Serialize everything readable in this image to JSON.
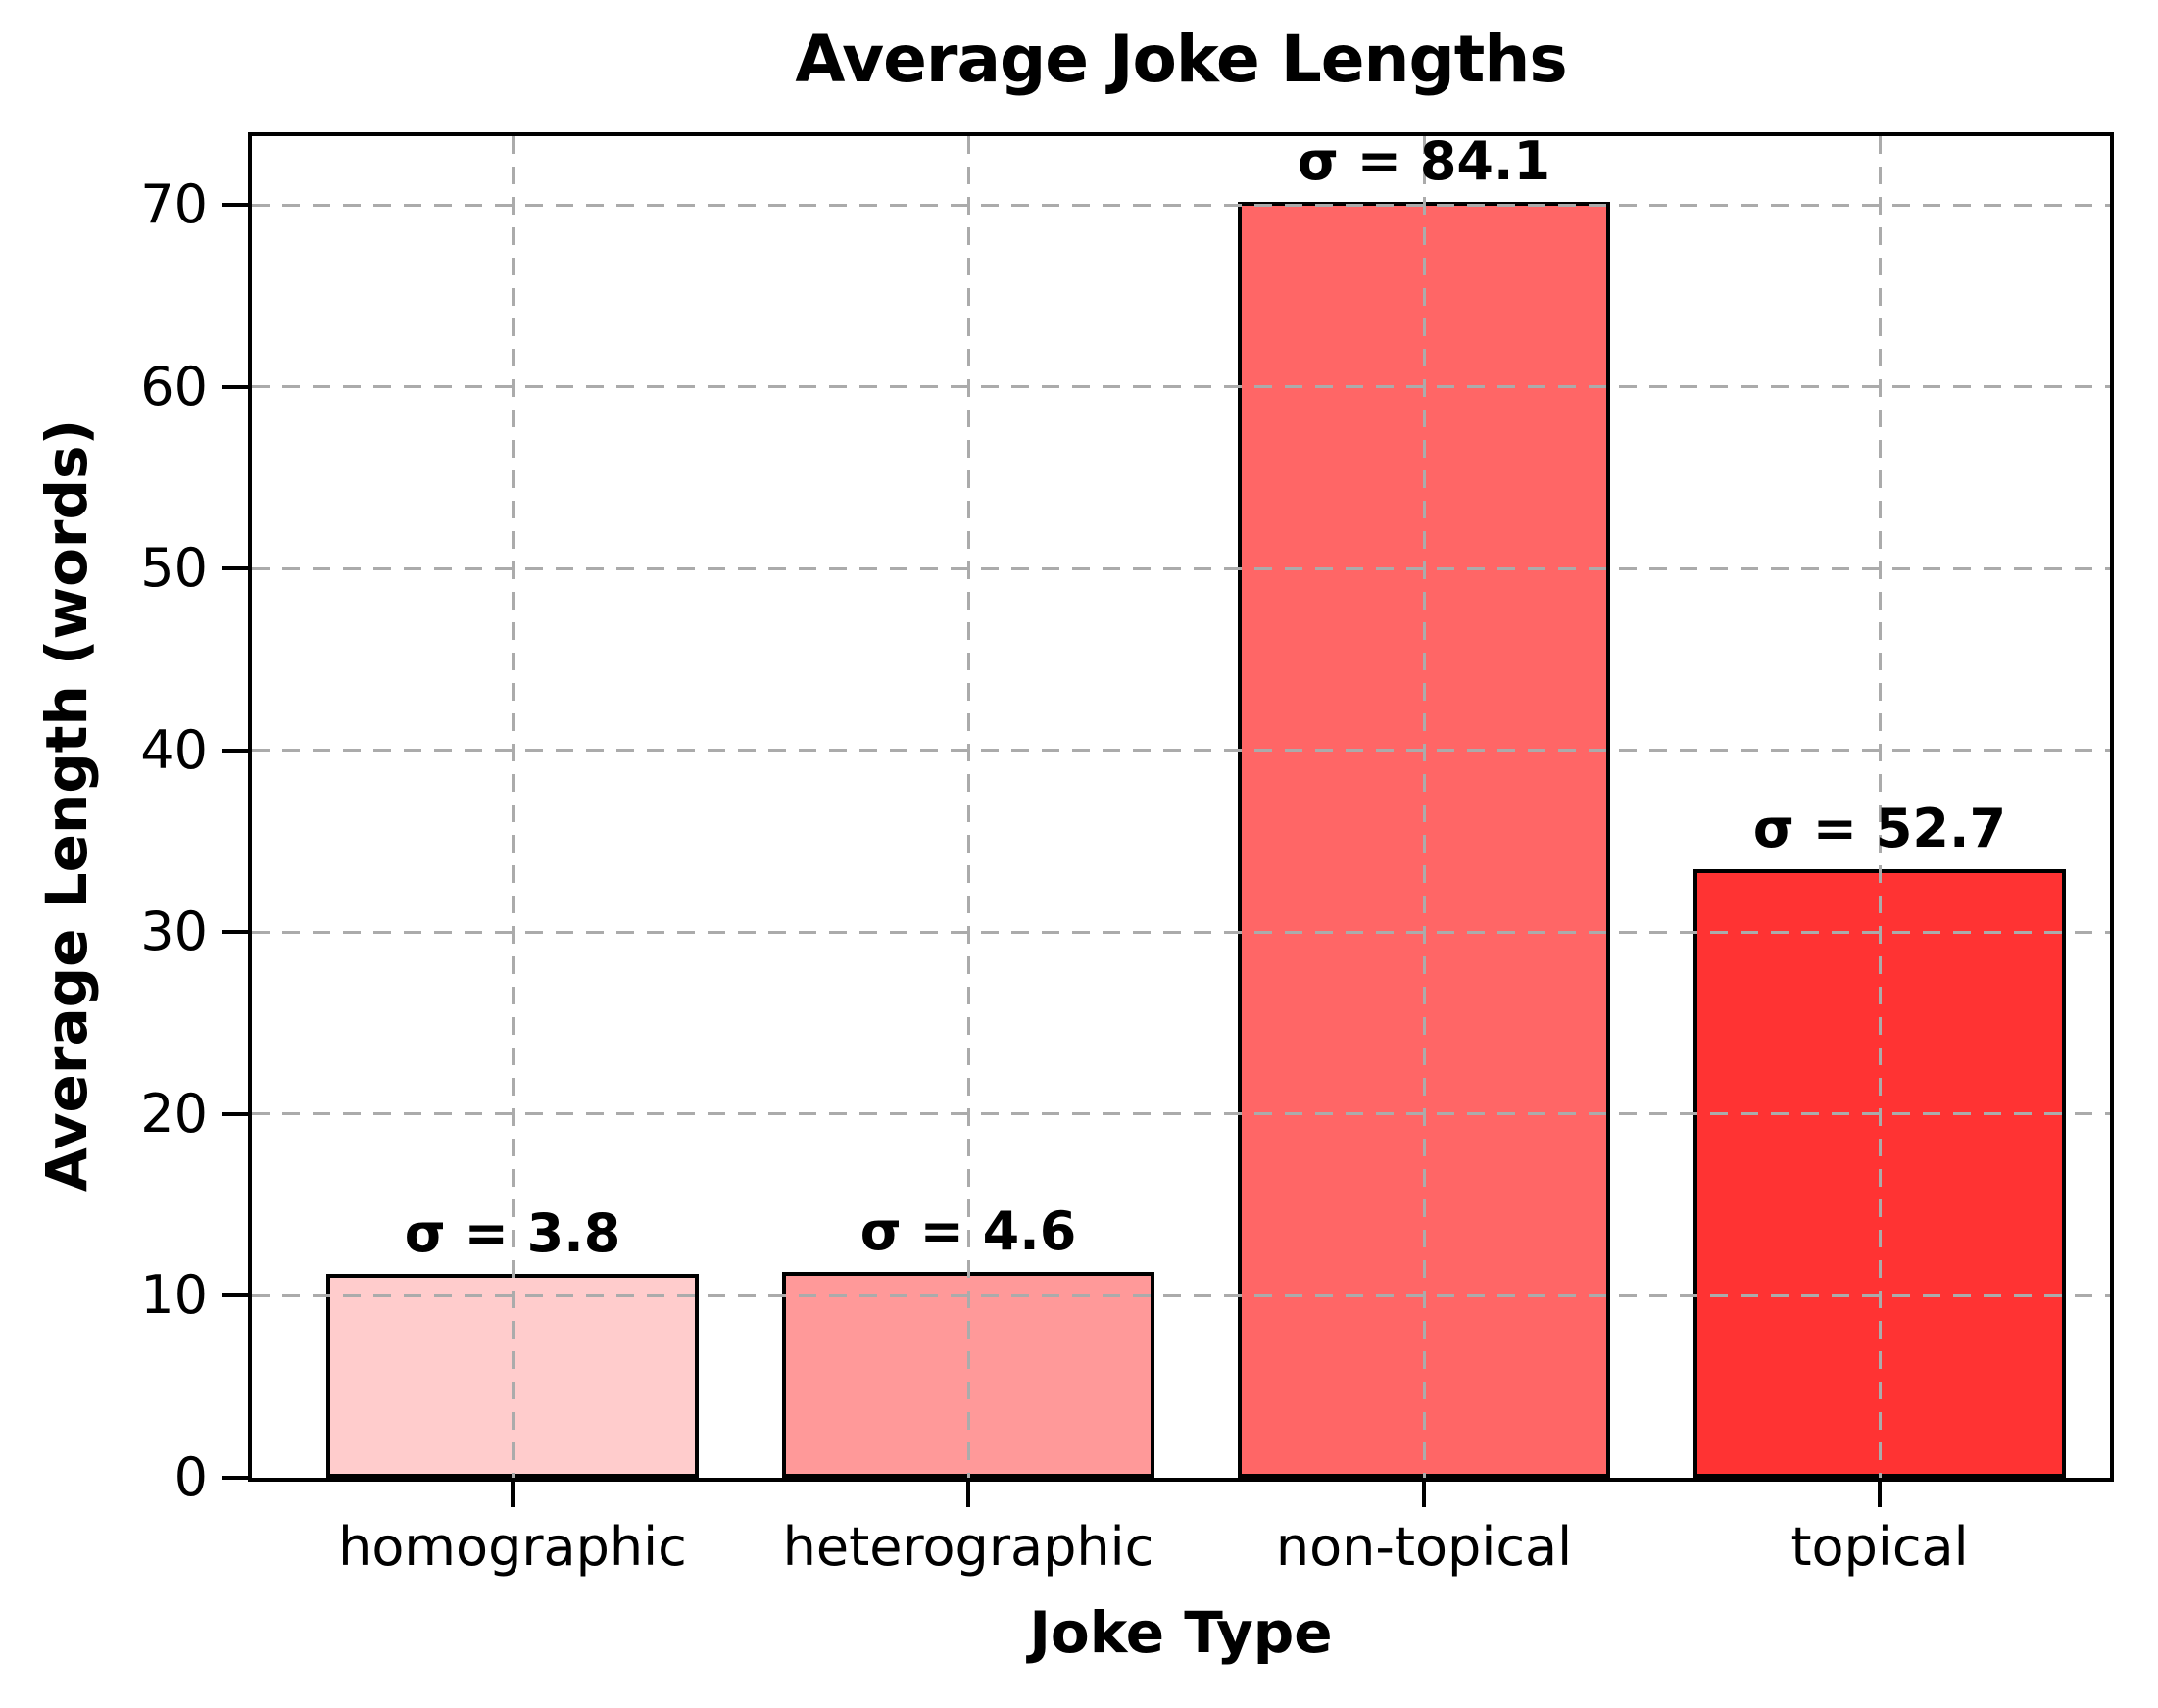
{
  "chart_data": {
    "type": "bar",
    "title": "Average Joke Lengths",
    "xlabel": "Joke Type",
    "ylabel": "Average Length (words)",
    "categories": [
      "homographic",
      "heterographic",
      "non-topical",
      "topical"
    ],
    "values": [
      11.2,
      11.3,
      70.2,
      33.5
    ],
    "bar_labels": [
      "σ = 3.8",
      "σ = 4.6",
      "σ = 84.1",
      "σ = 52.7"
    ],
    "sigma_values": [
      3.8,
      4.6,
      84.1,
      52.7
    ],
    "bar_colors": [
      "#ffcccc",
      "#ff9999",
      "#ff6666",
      "#ff3333"
    ],
    "bar_edge_color": "#000000",
    "yticks": [
      0,
      10,
      20,
      30,
      40,
      50,
      60,
      70
    ],
    "ylim": [
      0,
      73.8
    ],
    "grid": true,
    "grid_color": "#ababab",
    "grid_style": "dashed",
    "legend": "none",
    "background_color": "#ffffff",
    "text_color": "#000000"
  }
}
